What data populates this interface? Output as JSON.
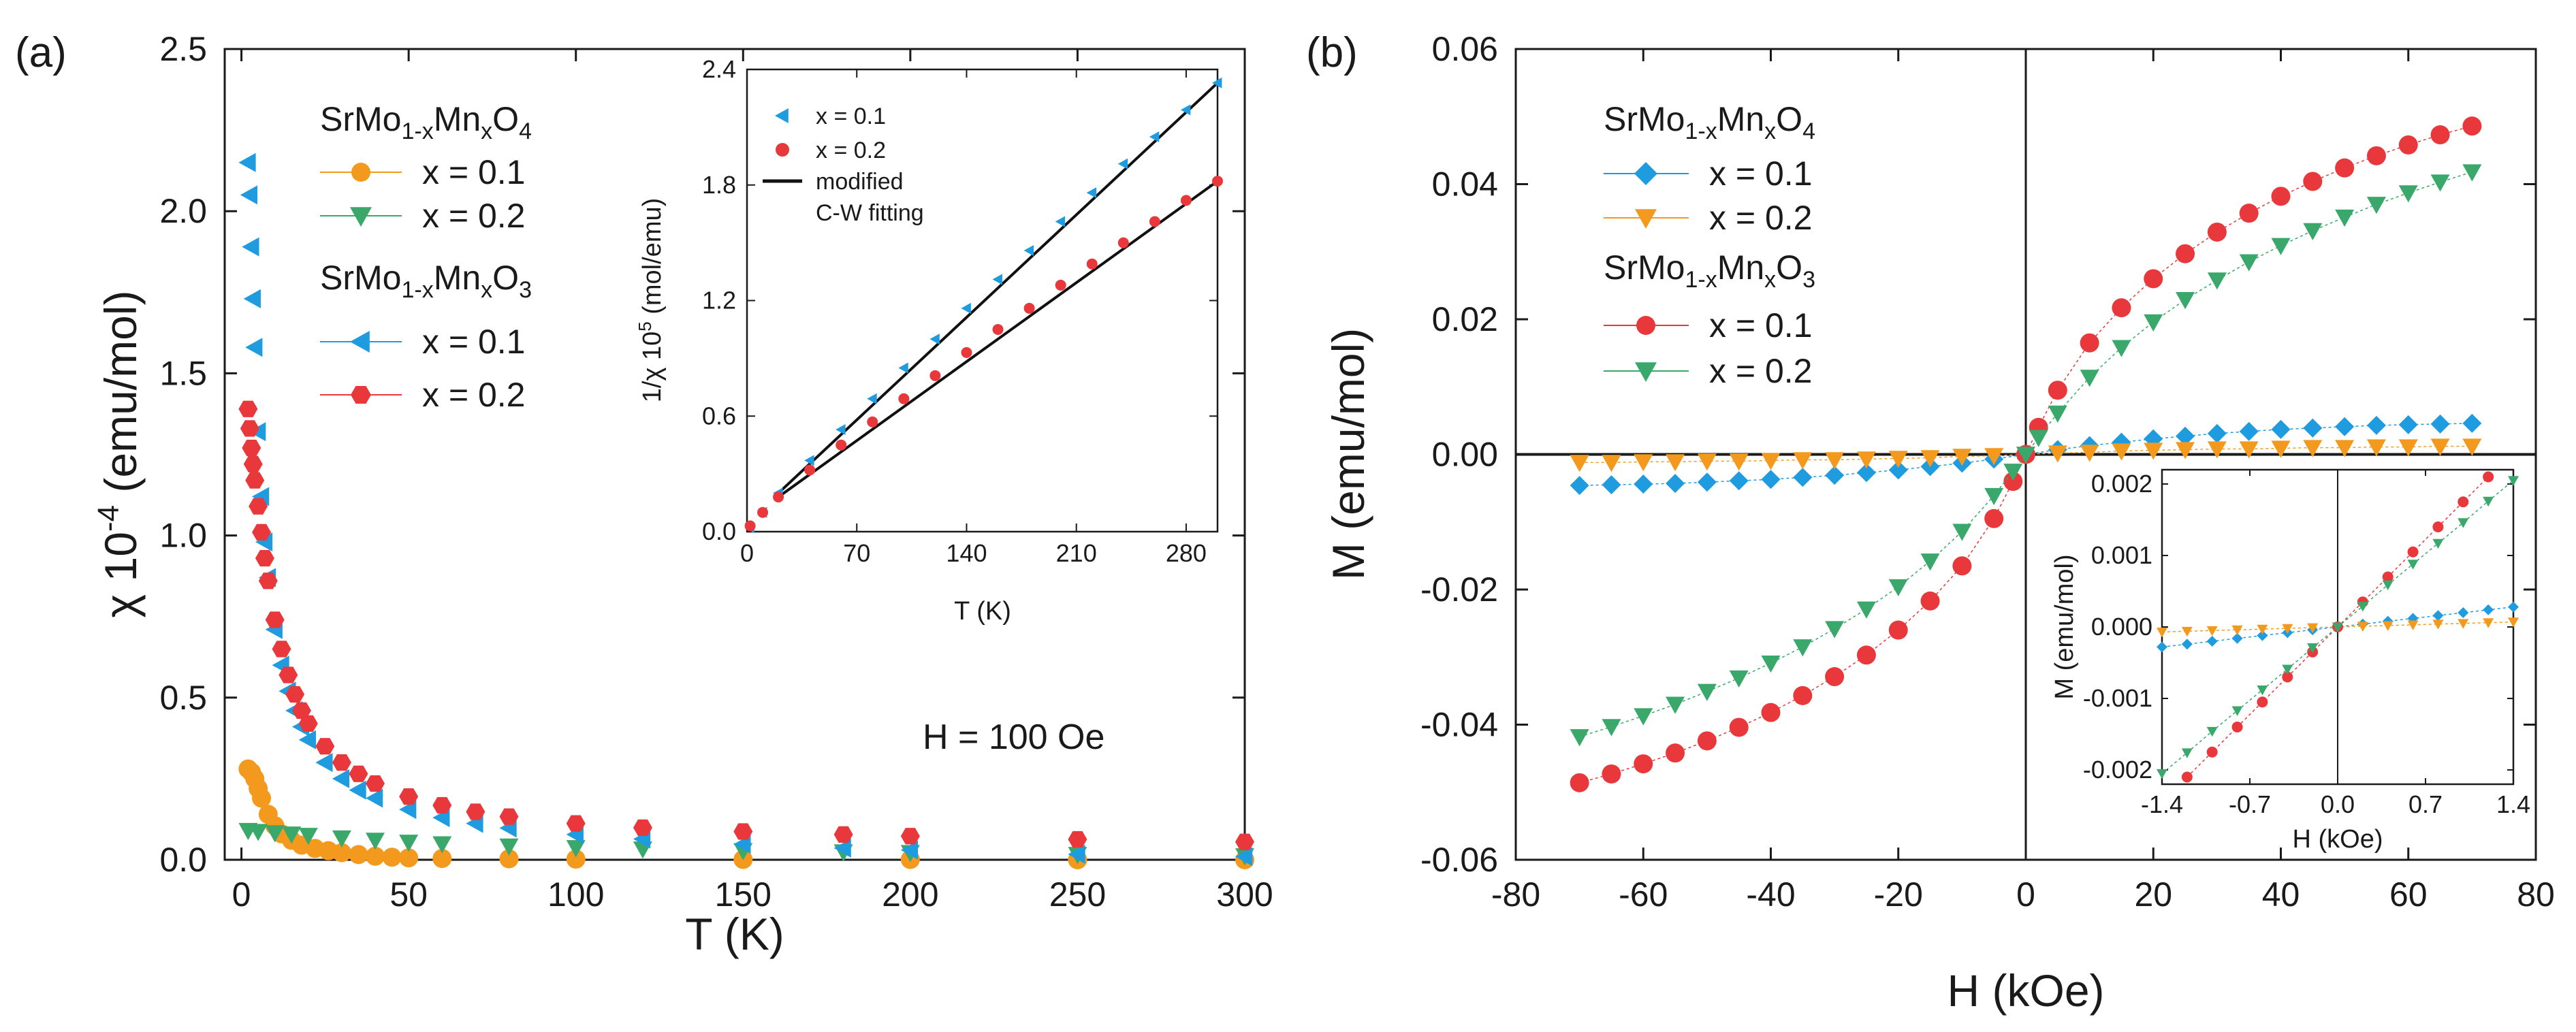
{
  "chart_data": [
    {
      "type": "scatter",
      "panel_label": "(a)",
      "xlabel": "T (K)",
      "ylabel_base": "χ 10",
      "ylabel_exp": "-4",
      "ylabel_unit": " (emu/mol)",
      "xlim": [
        -5,
        300
      ],
      "ylim": [
        0,
        2.5
      ],
      "xticks": [
        0,
        50,
        100,
        150,
        200,
        250,
        300
      ],
      "xtick_labels": [
        "0",
        "50",
        "100",
        "150",
        "200",
        "250",
        "300"
      ],
      "yticks": [
        0,
        0.5,
        1.0,
        1.5,
        2.0,
        2.5
      ],
      "ytick_labels": [
        "0.0",
        "0.5",
        "1.0",
        "1.5",
        "2.0",
        "2.5"
      ],
      "annotation": "H = 100 Oe",
      "legend_position": "top-left",
      "legend_groups": [
        {
          "compound_parts": [
            "SrMo",
            "1-x",
            "Mn",
            "x",
            "O",
            "4"
          ],
          "entries": [
            "x = 0.1",
            "x = 0.2"
          ]
        },
        {
          "compound_parts": [
            "SrMo",
            "1-x",
            "Mn",
            "x",
            "O",
            "3"
          ],
          "entries": [
            "x = 0.1",
            "x = 0.2"
          ]
        }
      ],
      "series": [
        {
          "name": "SrMo1-xMnxO4 x = 0.1",
          "marker": "circle",
          "color": "#f39a1e",
          "x": [
            2,
            3,
            4,
            5,
            6,
            8,
            10,
            12,
            15,
            18,
            22,
            26,
            30,
            35,
            40,
            45,
            50,
            60,
            80,
            100,
            150,
            200,
            250,
            300
          ],
          "y": [
            0.28,
            0.27,
            0.25,
            0.22,
            0.19,
            0.14,
            0.105,
            0.08,
            0.06,
            0.045,
            0.035,
            0.028,
            0.022,
            0.016,
            0.011,
            0.008,
            0.006,
            0.004,
            0.003,
            0.002,
            0.001,
            0.001,
            0.0,
            0.0
          ]
        },
        {
          "name": "SrMo1-xMnxO4 x = 0.2",
          "marker": "triangle-down",
          "color": "#3aa86a",
          "x": [
            2,
            5,
            10,
            15,
            20,
            30,
            40,
            50,
            60,
            80,
            100,
            120,
            150,
            180,
            200,
            250,
            300
          ],
          "y": [
            0.09,
            0.087,
            0.083,
            0.079,
            0.075,
            0.067,
            0.06,
            0.054,
            0.049,
            0.042,
            0.037,
            0.033,
            0.028,
            0.024,
            0.022,
            0.016,
            0.012
          ]
        },
        {
          "name": "SrMo1-xMnxO3 x = 0.1",
          "marker": "triangle-left",
          "color": "#1f9be0",
          "x": [
            2,
            2.5,
            3,
            3.5,
            4,
            5,
            6,
            7,
            8,
            10,
            12,
            14,
            16,
            18,
            20,
            25,
            30,
            35,
            40,
            50,
            60,
            70,
            80,
            100,
            120,
            150,
            180,
            200,
            250,
            300
          ],
          "y": [
            2.15,
            2.05,
            1.89,
            1.73,
            1.58,
            1.32,
            1.12,
            0.98,
            0.87,
            0.71,
            0.6,
            0.52,
            0.46,
            0.41,
            0.37,
            0.3,
            0.25,
            0.215,
            0.19,
            0.155,
            0.13,
            0.112,
            0.098,
            0.078,
            0.064,
            0.048,
            0.036,
            0.03,
            0.017,
            0.01
          ]
        },
        {
          "name": "SrMo1-xMnxO3 x = 0.2",
          "marker": "hexagon",
          "color": "#e8383b",
          "x": [
            2,
            2.5,
            3,
            3.5,
            4,
            5,
            6,
            7,
            8,
            10,
            12,
            14,
            16,
            18,
            20,
            25,
            30,
            35,
            40,
            50,
            60,
            70,
            80,
            100,
            120,
            150,
            180,
            200,
            250,
            300
          ],
          "y": [
            1.39,
            1.33,
            1.27,
            1.22,
            1.17,
            1.09,
            1.01,
            0.93,
            0.86,
            0.74,
            0.65,
            0.57,
            0.51,
            0.46,
            0.42,
            0.35,
            0.3,
            0.265,
            0.235,
            0.195,
            0.168,
            0.148,
            0.133,
            0.112,
            0.099,
            0.087,
            0.078,
            0.073,
            0.063,
            0.055
          ]
        }
      ],
      "inset": {
        "xlabel": "T (K)",
        "ylabel": "1/χ 10",
        "ylabel_exp": "5",
        "ylabel_unit": " (mol/emu)",
        "xlim": [
          0,
          300
        ],
        "ylim": [
          0,
          2.4
        ],
        "xticks": [
          0,
          70,
          140,
          210,
          280
        ],
        "xtick_labels": [
          "0",
          "70",
          "140",
          "210",
          "280"
        ],
        "yticks": [
          0,
          0.6,
          1.2,
          1.8,
          2.4
        ],
        "ytick_labels": [
          "0.0",
          "0.6",
          "1.2",
          "1.8",
          "2.4"
        ],
        "legend": [
          "x = 0.1",
          "x = 0.2",
          "modified",
          "C-W fitting"
        ],
        "series": [
          {
            "name": "x = 0.1",
            "marker": "triangle-left",
            "color": "#1f9be0",
            "x": [
              2,
              10,
              20,
              40,
              60,
              80,
              100,
              120,
              140,
              160,
              180,
              200,
              220,
              240,
              260,
              280,
              300
            ],
            "y": [
              0.02,
              0.1,
              0.2,
              0.37,
              0.53,
              0.69,
              0.85,
              1.0,
              1.16,
              1.31,
              1.46,
              1.61,
              1.76,
              1.91,
              2.05,
              2.19,
              2.33
            ]
          },
          {
            "name": "x = 0.2",
            "marker": "circle",
            "color": "#e8383b",
            "x": [
              2,
              10,
              20,
              40,
              60,
              80,
              100,
              120,
              140,
              160,
              180,
              200,
              220,
              240,
              260,
              280,
              300
            ],
            "y": [
              0.03,
              0.1,
              0.18,
              0.32,
              0.45,
              0.57,
              0.69,
              0.81,
              0.93,
              1.05,
              1.16,
              1.28,
              1.39,
              1.5,
              1.61,
              1.72,
              1.82
            ]
          }
        ],
        "fits": [
          {
            "name": "modified C-W fitting (x = 0.1)",
            "x": [
              20,
              300
            ],
            "y": [
              0.2,
              2.33
            ]
          },
          {
            "name": "modified C-W fitting (x = 0.2)",
            "x": [
              20,
              300
            ],
            "y": [
              0.18,
              1.82
            ]
          }
        ]
      }
    },
    {
      "type": "scatter",
      "panel_label": "(b)",
      "xlabel": "H (kOe)",
      "ylabel": "M (emu/mol)",
      "xlim": [
        -80,
        80
      ],
      "ylim": [
        -0.06,
        0.06
      ],
      "xticks": [
        -80,
        -60,
        -40,
        -20,
        0,
        20,
        40,
        60,
        80
      ],
      "xtick_labels": [
        "-80",
        "-60",
        "-40",
        "-20",
        "0",
        "20",
        "40",
        "60",
        "80"
      ],
      "yticks": [
        -0.06,
        -0.04,
        -0.02,
        0.0,
        0.02,
        0.04,
        0.06
      ],
      "ytick_labels": [
        "-0.06",
        "-0.04",
        "-0.02",
        "0.00",
        "0.02",
        "0.04",
        "0.06"
      ],
      "legend_position": "top-left",
      "legend_groups": [
        {
          "compound_parts": [
            "SrMo",
            "1-x",
            "Mn",
            "x",
            "O",
            "4"
          ],
          "entries": [
            "x = 0.1",
            "x = 0.2"
          ]
        },
        {
          "compound_parts": [
            "SrMo",
            "1-x",
            "Mn",
            "x",
            "O",
            "3"
          ],
          "entries": [
            "x = 0.1",
            "x = 0.2"
          ]
        }
      ],
      "series": [
        {
          "name": "SrMo1-xMnxO4 x = 0.1",
          "marker": "diamond",
          "color": "#1f9be0",
          "x": [
            -70,
            -65,
            -60,
            -55,
            -50,
            -45,
            -40,
            -35,
            -30,
            -25,
            -20,
            -15,
            -10,
            -5,
            0,
            5,
            10,
            15,
            20,
            25,
            30,
            35,
            40,
            45,
            50,
            55,
            60,
            65,
            70
          ],
          "y": [
            -0.0046,
            -0.0045,
            -0.0044,
            -0.0043,
            -0.0041,
            -0.0039,
            -0.0037,
            -0.0034,
            -0.0031,
            -0.0027,
            -0.0023,
            -0.0018,
            -0.0013,
            -0.0007,
            0.0,
            0.0007,
            0.0013,
            0.0018,
            0.0023,
            0.0027,
            0.0031,
            0.0034,
            0.0037,
            0.0039,
            0.0041,
            0.0043,
            0.0044,
            0.0045,
            0.0046
          ]
        },
        {
          "name": "SrMo1-xMnxO4 x = 0.2",
          "marker": "triangle-down",
          "color": "#f39a1e",
          "x": [
            -70,
            -65,
            -60,
            -55,
            -50,
            -45,
            -40,
            -35,
            -30,
            -25,
            -20,
            -15,
            -10,
            -5,
            0,
            5,
            10,
            15,
            20,
            25,
            30,
            35,
            40,
            45,
            50,
            55,
            60,
            65,
            70
          ],
          "y": [
            -0.0012,
            -0.0012,
            -0.0011,
            -0.0011,
            -0.001,
            -0.001,
            -0.0009,
            -0.0008,
            -0.0008,
            -0.0007,
            -0.0006,
            -0.0005,
            -0.0003,
            -0.0002,
            0.0,
            0.0002,
            0.0003,
            0.0005,
            0.0006,
            0.0007,
            0.0008,
            0.0008,
            0.0009,
            0.001,
            0.001,
            0.0011,
            0.0011,
            0.0012,
            0.0012
          ]
        },
        {
          "name": "SrMo1-xMnxO3 x = 0.1",
          "marker": "circle",
          "color": "#e8383b",
          "x": [
            -70,
            -65,
            -60,
            -55,
            -50,
            -45,
            -40,
            -35,
            -30,
            -25,
            -20,
            -15,
            -10,
            -5,
            -2,
            0,
            2,
            5,
            10,
            15,
            20,
            25,
            30,
            35,
            40,
            45,
            50,
            55,
            60,
            65,
            70
          ],
          "y": [
            -0.0486,
            -0.0473,
            -0.0458,
            -0.0442,
            -0.0424,
            -0.0404,
            -0.0382,
            -0.0357,
            -0.0329,
            -0.0297,
            -0.026,
            -0.0217,
            -0.0165,
            -0.0095,
            -0.004,
            0.0,
            0.004,
            0.0095,
            0.0165,
            0.0217,
            0.026,
            0.0297,
            0.0329,
            0.0357,
            0.0382,
            0.0404,
            0.0424,
            0.0442,
            0.0458,
            0.0473,
            0.0486
          ]
        },
        {
          "name": "SrMo1-xMnxO3 x = 0.2",
          "marker": "triangle-down",
          "color": "#3aa86a",
          "x": [
            -70,
            -65,
            -60,
            -55,
            -50,
            -45,
            -40,
            -35,
            -30,
            -25,
            -20,
            -15,
            -10,
            -5,
            -2,
            0,
            2,
            5,
            10,
            15,
            20,
            25,
            30,
            35,
            40,
            45,
            50,
            55,
            60,
            65,
            70
          ],
          "y": [
            -0.0418,
            -0.0403,
            -0.0387,
            -0.037,
            -0.0351,
            -0.0331,
            -0.0309,
            -0.0285,
            -0.0258,
            -0.0229,
            -0.0196,
            -0.0158,
            -0.0114,
            -0.0061,
            -0.0025,
            0.0,
            0.0025,
            0.0061,
            0.0114,
            0.0158,
            0.0196,
            0.0229,
            0.0258,
            0.0285,
            0.0309,
            0.0331,
            0.0351,
            0.037,
            0.0387,
            0.0403,
            0.0418
          ]
        }
      ],
      "inset": {
        "xlabel": "H (kOe)",
        "ylabel": "M (emu/mol)",
        "xlim": [
          -1.4,
          1.4
        ],
        "ylim": [
          -0.0022,
          0.0022
        ],
        "xticks": [
          -1.4,
          -0.7,
          0.0,
          0.7,
          1.4
        ],
        "xtick_labels": [
          "-1.4",
          "-0.7",
          "0.0",
          "0.7",
          "1.4"
        ],
        "yticks": [
          -0.002,
          -0.001,
          0.0,
          0.001,
          0.002
        ],
        "ytick_labels": [
          "-0.002",
          "-0.001",
          "0.000",
          "0.001",
          "0.002"
        ],
        "series": [
          {
            "name": "SrMo1-xMnxO4 x = 0.1",
            "marker": "diamond",
            "color": "#1f9be0",
            "x": [
              -1.4,
              -1.2,
              -1.0,
              -0.8,
              -0.6,
              -0.4,
              -0.2,
              0.0,
              0.2,
              0.4,
              0.6,
              0.8,
              1.0,
              1.2,
              1.4
            ],
            "y": [
              -0.00028,
              -0.00024,
              -0.0002,
              -0.00016,
              -0.00012,
              -8e-05,
              -4e-05,
              0.0,
              4e-05,
              8e-05,
              0.00012,
              0.00016,
              0.0002,
              0.00024,
              0.00028
            ]
          },
          {
            "name": "SrMo1-xMnxO4 x = 0.2",
            "marker": "triangle-down",
            "color": "#f39a1e",
            "x": [
              -1.4,
              -1.2,
              -1.0,
              -0.8,
              -0.6,
              -0.4,
              -0.2,
              0.0,
              0.2,
              0.4,
              0.6,
              0.8,
              1.0,
              1.2,
              1.4
            ],
            "y": [
              -7e-05,
              -6e-05,
              -5e-05,
              -4e-05,
              -3e-05,
              -2e-05,
              -1e-05,
              0.0,
              1e-05,
              2e-05,
              3e-05,
              4e-05,
              5e-05,
              6e-05,
              7e-05
            ]
          },
          {
            "name": "SrMo1-xMnxO3 x = 0.1",
            "marker": "circle",
            "color": "#e8383b",
            "x": [
              -1.2,
              -1.0,
              -0.8,
              -0.6,
              -0.4,
              -0.2,
              0.0,
              0.2,
              0.4,
              0.6,
              0.8,
              1.0,
              1.2
            ],
            "y": [
              -0.0021,
              -0.00175,
              -0.0014,
              -0.00105,
              -0.0007,
              -0.00035,
              0.0,
              0.00035,
              0.0007,
              0.00105,
              0.0014,
              0.00175,
              0.0021
            ]
          },
          {
            "name": "SrMo1-xMnxO3 x = 0.2",
            "marker": "triangle-down",
            "color": "#3aa86a",
            "x": [
              -1.4,
              -1.2,
              -1.0,
              -0.8,
              -0.6,
              -0.4,
              -0.2,
              0.0,
              0.2,
              0.4,
              0.6,
              0.8,
              1.0,
              1.2,
              1.4
            ],
            "y": [
              -0.00205,
              -0.00176,
              -0.00146,
              -0.00117,
              -0.00088,
              -0.00059,
              -0.00029,
              0.0,
              0.00029,
              0.00059,
              0.00088,
              0.00117,
              0.00146,
              0.00176,
              0.00205
            ]
          }
        ]
      }
    }
  ]
}
